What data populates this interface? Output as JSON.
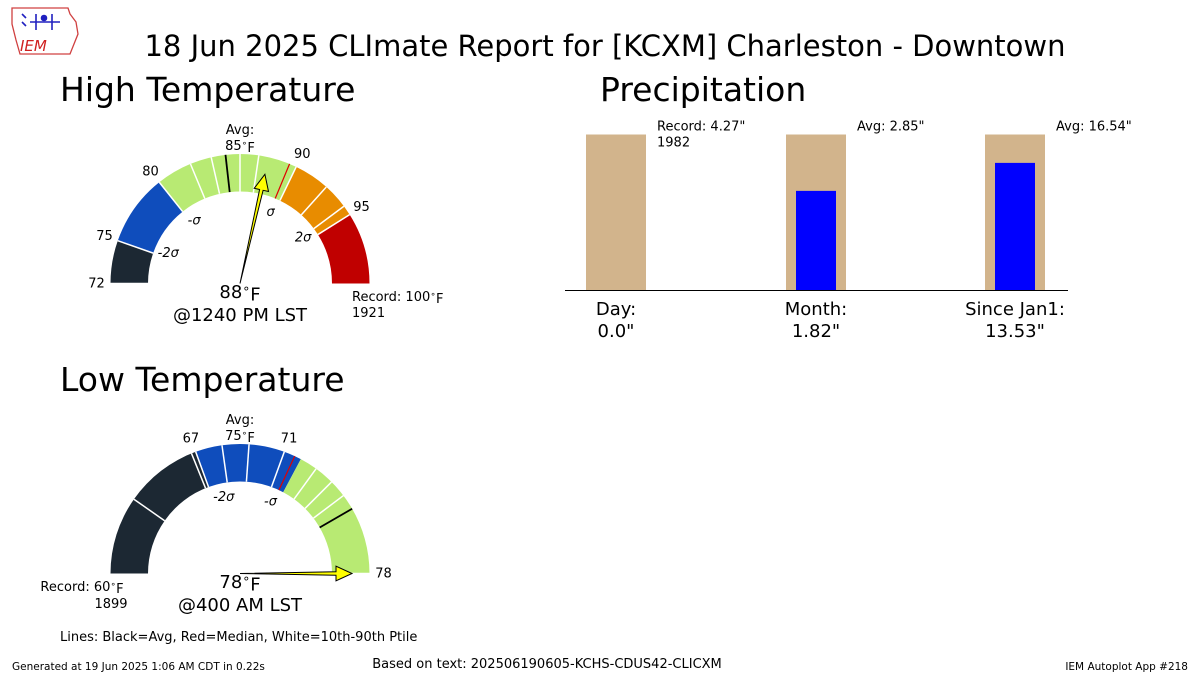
{
  "title": "18 Jun 2025 CLImate Report for [KCXM] Charleston - Downtown",
  "logo_text": "IEM",
  "footer": {
    "generated": "Generated at 19 Jun 2025 1:06 AM CDT in 0.22s",
    "source": "Based on text: 202506190605-KCHS-CDUS42-CLICXM",
    "app": "IEM Autoplot App #218"
  },
  "legend_note": "Lines: Black=Avg, Red=Median, White=10th-90th Ptile",
  "colors": {
    "dark": "#1c2833",
    "blue": "#0f4dbc",
    "green": "#b8ea73",
    "orange": "#e88c00",
    "red": "#c00000",
    "needle": "#ffff00",
    "tan": "#d2b48c",
    "precip_blue": "#0000ff"
  },
  "chart_data": [
    {
      "type": "gauge",
      "title": "High Temperature",
      "range": [
        72,
        100
      ],
      "ticks": [
        72,
        75,
        80,
        90,
        95
      ],
      "average": 85,
      "avg_label": "Avg:",
      "avg_value_label": "85$^\\circ$F",
      "median": 89.5,
      "percentile_lines": [
        82.5,
        84,
        86,
        87.3,
        92.5,
        94.3
      ],
      "sigma_labels": [
        {
          "label": "-2σ",
          "value": 75.6
        },
        {
          "label": "-σ",
          "value": 80.4
        },
        {
          "label": "σ",
          "value": 89.6
        },
        {
          "label": "2σ",
          "value": 94.4
        }
      ],
      "bands": [
        {
          "from": 72,
          "to": 75,
          "color": "dark"
        },
        {
          "from": 75,
          "to": 80,
          "color": "blue"
        },
        {
          "from": 80,
          "to": 90,
          "color": "green"
        },
        {
          "from": 90,
          "to": 95,
          "color": "orange"
        },
        {
          "from": 95,
          "to": 100,
          "color": "red"
        }
      ],
      "observed": 88,
      "observed_label": "88$^\\circ$F",
      "time_label": "@1240 PM LST",
      "record_label": "Record: 100$^\\circ$F",
      "record_year": "1921"
    },
    {
      "type": "gauge",
      "title": "Low Temperature",
      "range": [
        60,
        78
      ],
      "ticks": [
        67,
        71,
        78
      ],
      "average": 75,
      "avg_label": "Avg:",
      "avg_value_label": "75$^\\circ$F",
      "median": 71.5,
      "percentile_lines": [
        63.5,
        66.8,
        68.2,
        69.4,
        72.6,
        73.5,
        74.3
      ],
      "sigma_labels": [
        {
          "label": "-2σ",
          "value": 67.8
        },
        {
          "label": "-σ",
          "value": 71.3
        }
      ],
      "bands": [
        {
          "from": 60,
          "to": 67,
          "color": "dark"
        },
        {
          "from": 67,
          "to": 71.8,
          "color": "blue"
        },
        {
          "from": 71.8,
          "to": 78,
          "color": "green"
        }
      ],
      "observed": 78,
      "observed_label": "78$^\\circ$F",
      "time_label": "@400 AM LST",
      "record_label": "Record: 60$^\\circ$F",
      "record_year": "1899"
    },
    {
      "type": "bar",
      "title": "Precipitation",
      "categories": [
        "Day:",
        "Month:",
        "Since Jan1:"
      ],
      "value_labels": [
        "0.0\"",
        "1.82\"",
        "13.53\""
      ],
      "observed": [
        0.0,
        1.82,
        13.53
      ],
      "reference": [
        4.27,
        2.85,
        16.54
      ],
      "reference_labels": [
        "Record: 4.27\"",
        "Avg: 2.85\"",
        "Avg: 16.54\""
      ],
      "reference_sub": [
        "1982",
        "",
        ""
      ]
    }
  ]
}
